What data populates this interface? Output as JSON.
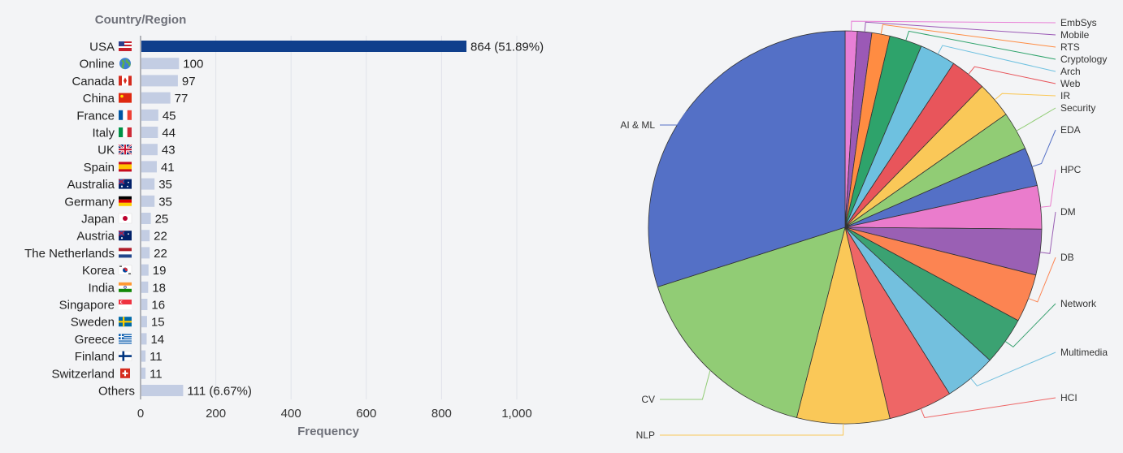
{
  "chart_data": [
    {
      "type": "bar",
      "orientation": "horizontal",
      "title": "Country/Region",
      "xlabel": "Frequency",
      "xlim": [
        0,
        1000
      ],
      "xticks": [
        "0",
        "200",
        "400",
        "600",
        "800",
        "1,000"
      ],
      "grid": true,
      "categories": [
        "USA",
        "Online",
        "Canada",
        "China",
        "France",
        "Italy",
        "UK",
        "Spain",
        "Australia",
        "Germany",
        "Japan",
        "Austria",
        "The Netherlands",
        "Korea",
        "India",
        "Singapore",
        "Sweden",
        "Greece",
        "Finland",
        "Switzerland",
        "Others"
      ],
      "values": [
        864,
        100,
        97,
        77,
        45,
        44,
        43,
        41,
        35,
        35,
        25,
        22,
        22,
        19,
        18,
        16,
        15,
        14,
        11,
        11,
        111
      ],
      "value_labels": [
        "864 (51.89%)",
        "100",
        "97",
        "77",
        "45",
        "44",
        "43",
        "41",
        "35",
        "35",
        "25",
        "22",
        "22",
        "19",
        "18",
        "16",
        "15",
        "14",
        "11",
        "11",
        "111 (6.67%)"
      ],
      "flag_icons": [
        "us-flag-icon",
        "globe-icon",
        "canada-flag-icon",
        "china-flag-icon",
        "france-flag-icon",
        "italy-flag-icon",
        "uk-flag-icon",
        "spain-flag-icon",
        "australia-flag-icon",
        "germany-flag-icon",
        "japan-flag-icon",
        "austria-flag-icon",
        "netherlands-flag-icon",
        "korea-flag-icon",
        "india-flag-icon",
        "singapore-flag-icon",
        "sweden-flag-icon",
        "greece-flag-icon",
        "finland-flag-icon",
        "switzerland-flag-icon",
        ""
      ],
      "colors": {
        "highlight": "#0f3f8c",
        "default": "#c3cde3"
      }
    },
    {
      "type": "pie",
      "legend_placement": "leader-line labels around the pie",
      "slices": [
        {
          "label": "EmbSys",
          "value": 1.0,
          "color": "#e87fd6"
        },
        {
          "label": "Mobile",
          "value": 1.2,
          "color": "#9b59b6"
        },
        {
          "label": "RTS",
          "value": 1.5,
          "color": "#ff8c42"
        },
        {
          "label": "Cryptology",
          "value": 2.7,
          "color": "#2ea36b"
        },
        {
          "label": "Arch",
          "value": 3.0,
          "color": "#6ec1e0"
        },
        {
          "label": "Web",
          "value": 3.0,
          "color": "#e8555b"
        },
        {
          "label": "IR",
          "value": 3.0,
          "color": "#fac858"
        },
        {
          "label": "Security",
          "value": 3.2,
          "color": "#91cc75"
        },
        {
          "label": "EDA",
          "value": 3.2,
          "color": "#5470c6"
        },
        {
          "label": "HPC",
          "value": 3.6,
          "color": "#ea7ccc"
        },
        {
          "label": "DM",
          "value": 3.8,
          "color": "#9a60b4"
        },
        {
          "label": "DB",
          "value": 4.0,
          "color": "#fc8452"
        },
        {
          "label": "Network",
          "value": 4.0,
          "color": "#3ba272"
        },
        {
          "label": "Multimedia",
          "value": 4.3,
          "color": "#73c0de"
        },
        {
          "label": "HCI",
          "value": 5.3,
          "color": "#ee6666"
        },
        {
          "label": "NLP",
          "value": 7.7,
          "color": "#fac858"
        },
        {
          "label": "CV",
          "value": 16.3,
          "color": "#91cc75"
        },
        {
          "label": "AI & ML",
          "value": 30.2,
          "color": "#5470c6"
        }
      ]
    }
  ]
}
